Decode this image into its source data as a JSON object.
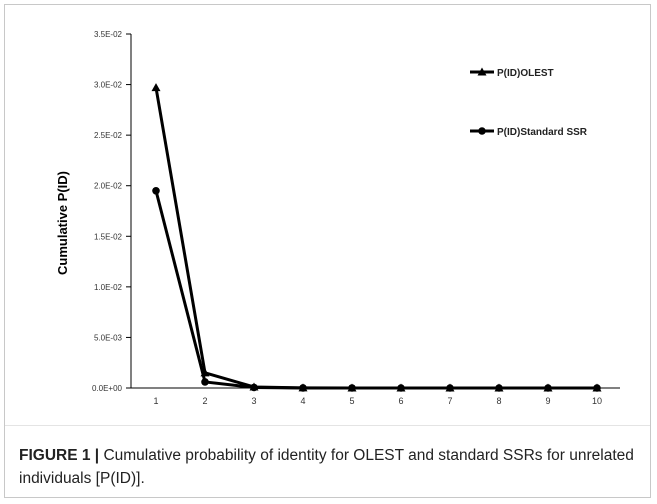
{
  "chart_data": {
    "type": "line",
    "x": [
      1,
      2,
      3,
      4,
      5,
      6,
      7,
      8,
      9,
      10
    ],
    "x_tick_labels": [
      "1",
      "2",
      "3",
      "4",
      "5",
      "6",
      "7",
      "8",
      "9",
      "10"
    ],
    "y_tick_values": [
      0,
      0.005,
      0.01,
      0.015,
      0.02,
      0.025,
      0.03,
      0.035
    ],
    "y_tick_labels": [
      "0.0E+00",
      "5.0E-03",
      "1.0E-02",
      "1.5E-02",
      "2.0E-02",
      "2.5E-02",
      "3.0E-02",
      "3.5E-02"
    ],
    "ylim": [
      0,
      0.035
    ],
    "xlabel": "",
    "ylabel": "Cumulative P(ID)",
    "grid": false,
    "legend_position": "top-right",
    "series": [
      {
        "name": "P(ID)OLEST",
        "marker": "triangle",
        "color": "#000000",
        "values": [
          0.0297,
          0.0015,
          0.0001,
          1e-05,
          1e-06,
          1e-07,
          0,
          0,
          0,
          0
        ]
      },
      {
        "name": "P(ID)Standard SSR",
        "marker": "circle",
        "color": "#000000",
        "values": [
          0.0195,
          0.0006,
          5e-05,
          3e-06,
          2e-07,
          0,
          0,
          0,
          0,
          0
        ]
      }
    ]
  },
  "caption": {
    "label": "FIGURE 1 |",
    "text": " Cumulative probability of identity for OLEST and standard SSRs for unrelated individuals [P(ID)]."
  }
}
